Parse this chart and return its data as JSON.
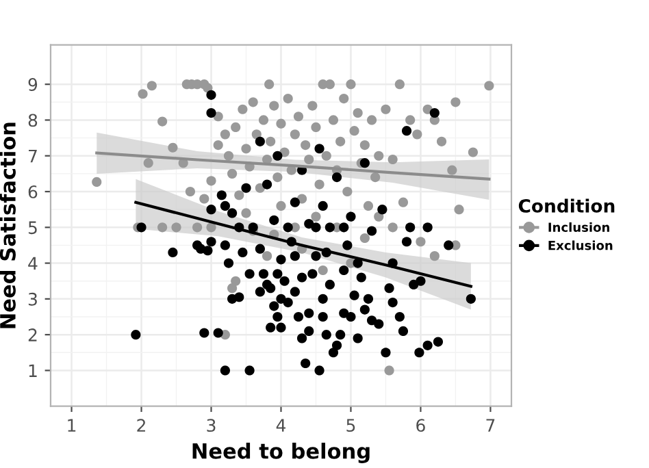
{
  "chart_data": {
    "type": "scatter",
    "xlabel": "Need to belong",
    "ylabel": "Need Satisfaction",
    "legend_title": "Condition",
    "legend": "right",
    "grid": true,
    "marker": "circle",
    "xlim": [
      0.7,
      7.3
    ],
    "ylim": [
      0,
      10.1
    ],
    "xticks": [
      1,
      2,
      3,
      4,
      5,
      6,
      7
    ],
    "yticks": [
      1,
      2,
      3,
      4,
      5,
      6,
      7,
      8,
      9
    ],
    "series": [
      {
        "name": "Inclusion",
        "color": "#999999",
        "x": [
          1.36,
          2.02,
          2.15,
          2.3,
          2.45,
          2.1,
          2.65,
          2.72,
          2.8,
          2.9,
          2.95,
          2.6,
          2.7,
          2.9,
          3.0,
          3.1,
          3.1,
          3.2,
          3.25,
          3.3,
          3.35,
          3.4,
          3.45,
          3.5,
          3.55,
          3.6,
          3.65,
          3.7,
          3.75,
          3.8,
          3.83,
          3.85,
          3.9,
          3.95,
          4.0,
          4.05,
          4.1,
          4.15,
          4.2,
          4.25,
          4.3,
          4.35,
          4.4,
          4.45,
          4.5,
          4.55,
          4.6,
          4.65,
          4.7,
          4.75,
          4.8,
          4.85,
          4.9,
          4.95,
          5.0,
          5.05,
          5.1,
          5.15,
          5.2,
          5.25,
          5.3,
          5.35,
          5.4,
          5.5,
          5.6,
          5.7,
          5.75,
          5.85,
          5.95,
          6.1,
          6.2,
          6.3,
          6.45,
          6.55,
          6.75,
          6.98,
          6.5,
          1.95,
          2.3,
          2.8,
          3.2,
          3.3,
          3.35,
          3.9,
          4.2,
          4.3,
          4.8,
          5.2,
          5.55,
          5.6,
          6.0,
          6.2,
          6.5,
          4.6,
          3.0,
          3.8,
          5.0,
          4.0,
          3.5,
          4.5,
          5.4,
          2.5,
          3.6
        ],
        "values": [
          6.27,
          8.73,
          8.96,
          7.96,
          7.23,
          6.8,
          9,
          9,
          9,
          9,
          8.9,
          6.8,
          6.0,
          5.8,
          6.3,
          7.3,
          8.1,
          7.6,
          7.0,
          6.5,
          7.8,
          5.9,
          8.3,
          7.2,
          6.7,
          8.5,
          7.6,
          6.1,
          8.0,
          6.9,
          9,
          7.4,
          8.4,
          6.4,
          7.9,
          7.1,
          8.6,
          6.6,
          7.6,
          8.1,
          5.8,
          7.3,
          6.9,
          8.4,
          7.8,
          6.2,
          9,
          7.0,
          9,
          8.0,
          6.6,
          7.4,
          8.6,
          6.0,
          9,
          7.7,
          8.2,
          6.8,
          7.3,
          5.6,
          8.0,
          6.4,
          7.0,
          8.3,
          6.9,
          9,
          5.7,
          8.0,
          7.6,
          8.3,
          8.0,
          7.4,
          6.6,
          5.5,
          7.1,
          8.96,
          8.5,
          5.0,
          5.0,
          5.0,
          2.0,
          3.3,
          3.5,
          4.8,
          5.0,
          4.4,
          5.0,
          4.7,
          1.0,
          5.0,
          4.6,
          4.2,
          4.5,
          3.8,
          5.0,
          4.2,
          4.0,
          5.6,
          5.4,
          5.3,
          5.3,
          5.0,
          4.9
        ]
      },
      {
        "name": "Exclusion",
        "color": "#000000",
        "x": [
          1.92,
          2.0,
          2.45,
          2.8,
          2.85,
          2.9,
          3.1,
          3.2,
          3.55,
          2.95,
          3.0,
          3.2,
          3.25,
          3.3,
          3.4,
          3.45,
          3.55,
          3.7,
          3.75,
          3.8,
          3.85,
          3.9,
          3.95,
          4.0,
          3.95,
          3.0,
          3.0,
          3.0,
          3.15,
          3.2,
          3.3,
          3.4,
          3.5,
          3.7,
          3.8,
          3.9,
          4.0,
          4.05,
          4.1,
          4.15,
          4.2,
          4.25,
          4.3,
          4.35,
          4.4,
          4.45,
          4.5,
          4.55,
          4.6,
          4.65,
          4.7,
          4.75,
          4.8,
          4.85,
          4.9,
          4.95,
          5.0,
          5.05,
          5.1,
          5.15,
          5.2,
          5.25,
          5.3,
          5.4,
          5.5,
          5.55,
          5.6,
          5.7,
          5.75,
          5.8,
          5.85,
          6.0,
          5.98,
          6.1,
          6.25,
          6.1,
          6.72,
          4.2,
          4.3,
          4.4,
          4.6,
          4.8,
          4.9,
          5.0,
          5.2,
          5.8,
          6.2,
          4.1,
          4.5,
          4.7,
          3.6,
          3.7,
          4.0,
          4.3,
          4.6,
          4.9,
          5.1,
          5.3,
          4.4,
          4.2,
          3.85,
          5.6,
          5.9,
          6.4,
          4.65,
          5.45,
          3.95,
          4.55
        ],
        "values": [
          2.0,
          5.0,
          4.3,
          4.5,
          4.4,
          2.05,
          2.05,
          1.0,
          1.0,
          4.35,
          4.6,
          4.5,
          4.0,
          3.0,
          3.05,
          4.3,
          3.7,
          3.2,
          3.7,
          3.4,
          3.3,
          2.8,
          2.5,
          2.2,
          3.7,
          8.7,
          8.2,
          5.5,
          5.9,
          5.6,
          5.4,
          5.0,
          6.1,
          7.4,
          6.2,
          5.2,
          4.1,
          3.5,
          2.9,
          4.6,
          3.2,
          2.5,
          1.9,
          1.2,
          2.1,
          3.7,
          4.2,
          1.0,
          2.5,
          2.0,
          3.4,
          1.5,
          1.7,
          2.0,
          3.8,
          4.5,
          2.5,
          3.1,
          4.0,
          3.6,
          2.7,
          3.0,
          4.9,
          2.3,
          1.5,
          3.3,
          2.9,
          2.5,
          2.1,
          4.6,
          5.0,
          3.5,
          1.5,
          1.7,
          1.8,
          5.0,
          3.0,
          5.7,
          6.6,
          5.1,
          5.6,
          6.4,
          5.0,
          5.3,
          6.8,
          7.7,
          8.2,
          5.0,
          5.0,
          5.0,
          5.0,
          4.4,
          3.0,
          3.6,
          3.0,
          2.6,
          1.9,
          2.4,
          2.6,
          4.2,
          2.2,
          4.0,
          3.4,
          4.5,
          4.3,
          5.5,
          7.0,
          7.2
        ]
      },
      {
        "type": "line",
        "color": "#8c8c8c",
        "marker": "none",
        "x": [
          1.36,
          2.8,
          4.2,
          5.6,
          6.98
        ],
        "values": [
          7.08,
          6.89,
          6.72,
          6.53,
          6.35
        ],
        "lower": [
          6.5,
          6.65,
          6.55,
          6.25,
          5.77
        ],
        "upper": [
          7.65,
          7.13,
          6.89,
          6.82,
          6.9
        ]
      },
      {
        "type": "line",
        "color": "#000000",
        "marker": "none",
        "x": [
          1.92,
          3.1,
          4.3,
          5.5,
          6.72
        ],
        "values": [
          5.7,
          5.1,
          4.5,
          3.95,
          3.35
        ],
        "lower": [
          4.96,
          4.75,
          4.3,
          3.6,
          2.7
        ],
        "upper": [
          6.35,
          5.45,
          4.72,
          4.3,
          4.0
        ]
      }
    ]
  }
}
